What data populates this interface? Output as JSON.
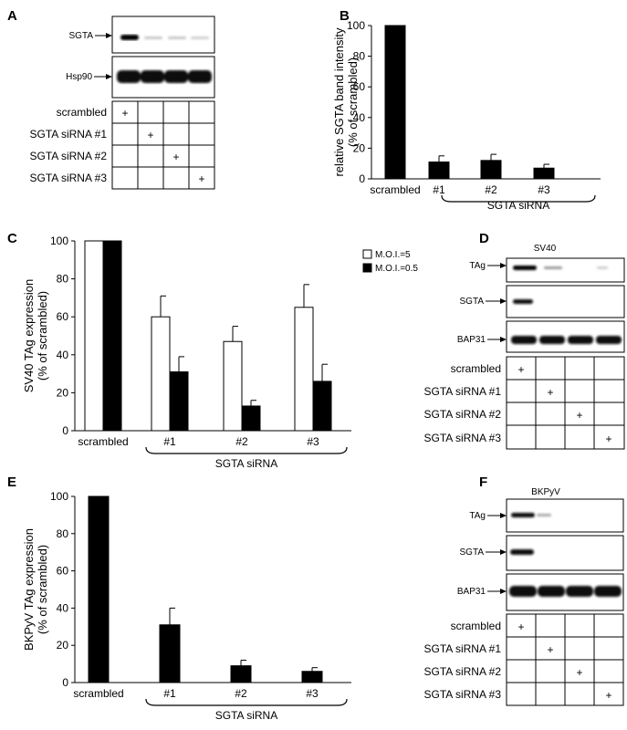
{
  "panels": {
    "A": {
      "label": "A",
      "blot_labels": [
        "SGTA",
        "Hsp90"
      ],
      "rows": [
        "scrambled",
        "SGTA siRNA #1",
        "SGTA siRNA #2",
        "SGTA siRNA #3"
      ],
      "plus": "+"
    },
    "D": {
      "label": "D",
      "title": "SV40",
      "blot_labels": [
        "TAg",
        "SGTA",
        "BAP31"
      ],
      "rows": [
        "scrambled",
        "SGTA siRNA #1",
        "SGTA siRNA #2",
        "SGTA siRNA #3"
      ],
      "plus": "+"
    },
    "F": {
      "label": "F",
      "title": "BKPyV",
      "blot_labels": [
        "TAg",
        "SGTA",
        "BAP31"
      ],
      "rows": [
        "scrambled",
        "SGTA siRNA #1",
        "SGTA siRNA #2",
        "SGTA siRNA #3"
      ],
      "plus": "+"
    }
  },
  "chart_data": [
    {
      "panel": "B",
      "type": "bar",
      "categories": [
        "scrambled",
        "#1",
        "#2",
        "#3"
      ],
      "values": [
        100,
        11,
        12,
        7
      ],
      "errors": [
        0,
        4,
        4,
        2.5
      ],
      "ylabel_lines": [
        "relative SGTA band intensity",
        "(% of scrambled)"
      ],
      "ylim": [
        0,
        100
      ],
      "yticks": [
        "0",
        "20",
        "40",
        "60",
        "80",
        "100"
      ],
      "group_label": "SGTA siRNA",
      "color": "#000000"
    },
    {
      "panel": "C",
      "type": "bar",
      "categories": [
        "scrambled",
        "#1",
        "#2",
        "#3"
      ],
      "series": [
        {
          "name": "M.O.I.=5",
          "values": [
            100,
            60,
            47,
            65
          ],
          "errors": [
            0,
            11,
            8,
            12
          ],
          "color": "#ffffff"
        },
        {
          "name": "M.O.I.=0.5",
          "values": [
            100,
            31,
            13,
            26
          ],
          "errors": [
            0,
            8,
            3,
            9
          ],
          "color": "#000000"
        }
      ],
      "ylabel_lines": [
        "SV40 TAg expression",
        "(% of scrambled)"
      ],
      "ylim": [
        0,
        100
      ],
      "yticks": [
        "0",
        "20",
        "40",
        "60",
        "80",
        "100"
      ],
      "group_label": "SGTA siRNA",
      "legend": "top-right"
    },
    {
      "panel": "E",
      "type": "bar",
      "categories": [
        "scrambled",
        "#1",
        "#2",
        "#3"
      ],
      "values": [
        100,
        31,
        9,
        6
      ],
      "errors": [
        0,
        9,
        3,
        2
      ],
      "ylabel_lines": [
        "BKPyV TAg expression",
        "(% of scrambled)"
      ],
      "ylim": [
        0,
        100
      ],
      "yticks": [
        "0",
        "20",
        "40",
        "60",
        "80",
        "100"
      ],
      "group_label": "SGTA siRNA",
      "color": "#000000"
    }
  ]
}
